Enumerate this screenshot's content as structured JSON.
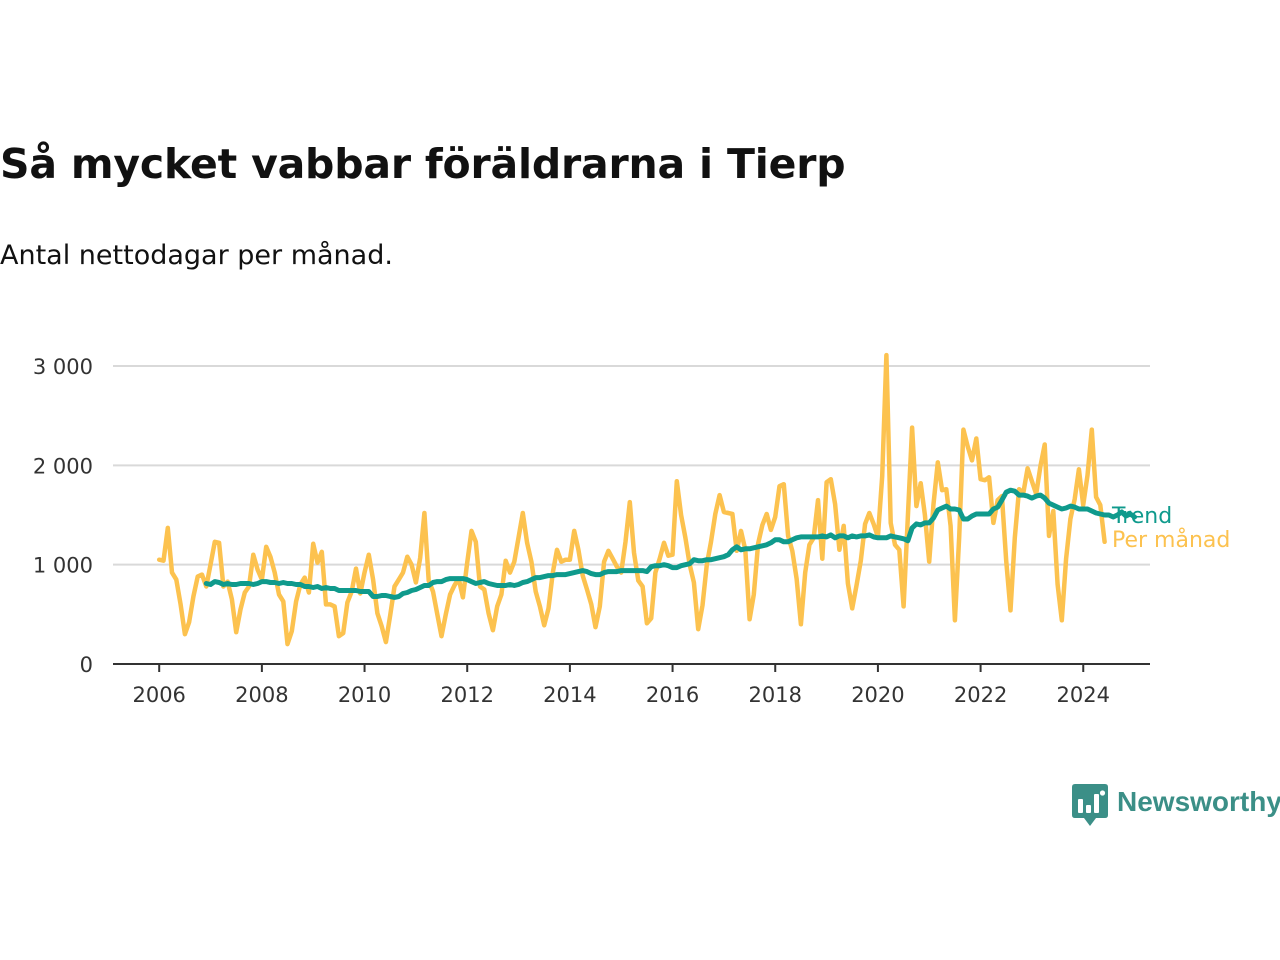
{
  "title": "Så mycket vabbar föräldrarna i Tierp",
  "subtitle": "Antal nettodagar per månad.",
  "brand": {
    "name": "Newsworthy",
    "color": "#3b8f87",
    "icon": "newsworthy-logo-icon"
  },
  "chart_data": {
    "type": "line",
    "title": "Så mycket vabbar föräldrarna i Tierp",
    "subtitle": "Antal nettodagar per månad.",
    "xlabel": "",
    "ylabel": "",
    "x_start": 2006.0,
    "x_step": 0.08333,
    "xlim": [
      2005.1,
      2025.3
    ],
    "ylim": [
      0,
      3000
    ],
    "yticks": [
      0,
      1000,
      2000,
      3000
    ],
    "ytick_labels": [
      "0",
      "1 000",
      "2 000",
      "3 000"
    ],
    "xticks": [
      2006,
      2008,
      2010,
      2012,
      2014,
      2016,
      2018,
      2020,
      2022,
      2024
    ],
    "xtick_labels": [
      "2006",
      "2008",
      "2010",
      "2012",
      "2014",
      "2016",
      "2018",
      "2020",
      "2022",
      "2024"
    ],
    "grid": "horizontal",
    "legend": "direct labels at line ends",
    "series": [
      {
        "name": "Per månad",
        "color": "#fcc24f",
        "start_index": 0,
        "values": [
          1050,
          1040,
          1370,
          920,
          850,
          600,
          300,
          420,
          680,
          880,
          900,
          780,
          1000,
          1230,
          1220,
          780,
          830,
          650,
          320,
          550,
          720,
          780,
          1100,
          950,
          850,
          1180,
          1080,
          920,
          700,
          630,
          200,
          330,
          630,
          800,
          870,
          720,
          1210,
          1020,
          1130,
          600,
          600,
          580,
          280,
          310,
          620,
          730,
          960,
          710,
          920,
          1100,
          850,
          510,
          380,
          220,
          490,
          780,
          850,
          920,
          1080,
          1000,
          820,
          1070,
          1520,
          840,
          730,
          500,
          280,
          500,
          700,
          790,
          860,
          670,
          1020,
          1340,
          1230,
          780,
          750,
          510,
          340,
          580,
          700,
          1040,
          920,
          1030,
          1270,
          1520,
          1220,
          1030,
          730,
          580,
          390,
          560,
          920,
          1150,
          1030,
          1050,
          1050,
          1340,
          1150,
          890,
          750,
          600,
          370,
          580,
          1030,
          1140,
          1060,
          980,
          920,
          1230,
          1630,
          1120,
          840,
          780,
          410,
          460,
          920,
          1060,
          1220,
          1090,
          1100,
          1840,
          1500,
          1270,
          1000,
          820,
          350,
          590,
          1000,
          1230,
          1510,
          1700,
          1530,
          1520,
          1510,
          1140,
          1340,
          1150,
          450,
          700,
          1210,
          1400,
          1510,
          1350,
          1480,
          1790,
          1810,
          1290,
          1140,
          860,
          400,
          920,
          1200,
          1270,
          1650,
          1060,
          1830,
          1860,
          1610,
          1150,
          1390,
          810,
          560,
          790,
          1040,
          1410,
          1520,
          1410,
          1280,
          1890,
          3110,
          1420,
          1200,
          1150,
          580,
          1470,
          2380,
          1590,
          1820,
          1500,
          1030,
          1610,
          2030,
          1750,
          1760,
          1390,
          440,
          1280,
          2360,
          2190,
          2050,
          2270,
          1860,
          1850,
          1880,
          1420,
          1650,
          1690,
          1040,
          540,
          1270,
          1760,
          1720,
          1970,
          1840,
          1710,
          1990,
          2210,
          1290,
          1540,
          800,
          440,
          1060,
          1460,
          1660,
          1960,
          1600,
          1900,
          2360,
          1680,
          1600,
          1230
        ]
      },
      {
        "name": "Trend",
        "color": "#0f9a8c",
        "start_index": 11,
        "values": [
          810,
          800,
          830,
          820,
          800,
          810,
          800,
          800,
          810,
          810,
          810,
          800,
          810,
          830,
          830,
          820,
          820,
          810,
          820,
          810,
          810,
          800,
          800,
          780,
          780,
          770,
          780,
          760,
          770,
          760,
          760,
          740,
          740,
          740,
          740,
          740,
          730,
          730,
          730,
          680,
          680,
          690,
          690,
          680,
          670,
          680,
          710,
          720,
          740,
          750,
          770,
          790,
          790,
          820,
          830,
          830,
          850,
          860,
          860,
          860,
          860,
          850,
          830,
          810,
          820,
          830,
          810,
          800,
          790,
          790,
          790,
          800,
          790,
          800,
          820,
          830,
          850,
          870,
          870,
          880,
          890,
          890,
          900,
          900,
          900,
          910,
          920,
          930,
          940,
          930,
          910,
          900,
          900,
          920,
          930,
          930,
          930,
          940,
          940,
          940,
          940,
          940,
          940,
          930,
          980,
          990,
          990,
          1000,
          990,
          970,
          970,
          990,
          1000,
          1010,
          1050,
          1040,
          1040,
          1050,
          1050,
          1060,
          1070,
          1080,
          1100,
          1150,
          1180,
          1150,
          1160,
          1160,
          1170,
          1180,
          1190,
          1200,
          1220,
          1250,
          1250,
          1230,
          1230,
          1250,
          1270,
          1280,
          1280,
          1280,
          1280,
          1280,
          1290,
          1280,
          1300,
          1270,
          1290,
          1290,
          1270,
          1290,
          1280,
          1290,
          1290,
          1300,
          1280,
          1270,
          1270,
          1270,
          1290,
          1280,
          1270,
          1260,
          1240,
          1370,
          1410,
          1400,
          1420,
          1420,
          1470,
          1550,
          1570,
          1590,
          1560,
          1560,
          1550,
          1460,
          1460,
          1490,
          1510,
          1510,
          1510,
          1510,
          1560,
          1580,
          1650,
          1730,
          1750,
          1740,
          1700,
          1700,
          1690,
          1670,
          1690,
          1700,
          1670,
          1620,
          1600,
          1580,
          1560,
          1570,
          1590,
          1580,
          1560,
          1560,
          1560,
          1540,
          1520,
          1510,
          1500,
          1500,
          1480,
          1500,
          1530,
          1490,
          1510,
          1480
        ]
      }
    ]
  }
}
